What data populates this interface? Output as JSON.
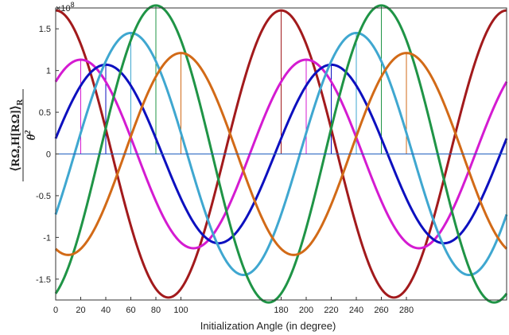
{
  "chart_data": {
    "type": "line",
    "xlabel": "Initialization Angle (in degree)",
    "ylabel_numer": "⟨RΩ,H[RΩ]⟩",
    "ylabel_sub": "R",
    "ylabel_denom": "θ",
    "ylabel_denom_sup": "2",
    "y_exponent_base": "×10",
    "y_exponent_power": "8",
    "xlim": [
      0,
      360
    ],
    "ylim": [
      -1.75,
      1.75
    ],
    "xticks": [
      0,
      20,
      40,
      60,
      80,
      100,
      180,
      200,
      220,
      240,
      260,
      280
    ],
    "xtick_labels": [
      "0",
      "20",
      "40",
      "60",
      "80",
      "100",
      "180",
      "200",
      "220",
      "240",
      "260",
      "280"
    ],
    "yticks": [
      -1.5,
      -1,
      -0.5,
      0,
      0.5,
      1,
      1.5
    ],
    "ytick_labels": [
      "-1.5",
      "-1",
      "-0.5",
      "0",
      "0.5",
      "1",
      "1.5"
    ],
    "zero_line": true,
    "series": [
      {
        "amplitude": 1.72,
        "peak_deg": 180,
        "color": "#a21a1c"
      },
      {
        "amplitude": 1.13,
        "peak_deg": 20,
        "color": "#d41bd1"
      },
      {
        "amplitude": 1.07,
        "peak_deg": 40,
        "color": "#0d10bf"
      },
      {
        "amplitude": 1.45,
        "peak_deg": 60,
        "color": "#3fa7d0"
      },
      {
        "amplitude": 1.78,
        "peak_deg": 80,
        "color": "#1f9446"
      },
      {
        "amplitude": 1.21,
        "peak_deg": 100,
        "color": "#d26a17"
      }
    ],
    "vertical_markers": [
      {
        "x": 20,
        "color": "#d41bd1"
      },
      {
        "x": 40,
        "color": "#0d10bf"
      },
      {
        "x": 60,
        "color": "#3fa7d0"
      },
      {
        "x": 80,
        "color": "#1f9446"
      },
      {
        "x": 100,
        "color": "#d26a17"
      },
      {
        "x": 180,
        "color": "#a21a1c"
      },
      {
        "x": 200,
        "color": "#d41bd1"
      },
      {
        "x": 220,
        "color": "#0d10bf"
      },
      {
        "x": 240,
        "color": "#3fa7d0"
      },
      {
        "x": 260,
        "color": "#1f9446"
      },
      {
        "x": 280,
        "color": "#d26a17"
      }
    ]
  }
}
